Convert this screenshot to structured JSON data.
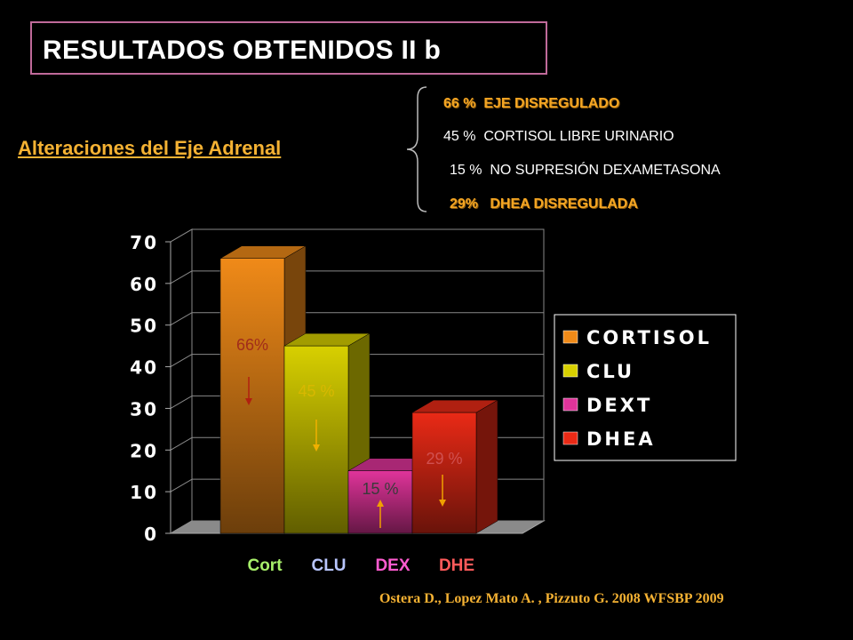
{
  "slide": {
    "title": "RESULTADOS OBTENIDOS II b",
    "subtitle": "Alteraciones del Eje Adrenal",
    "citation": "Ostera D., Lopez Mato A. , Pizzuto G. 2008 WFSBP 2009"
  },
  "stats": [
    {
      "text": "66 %  EJE DISREGULADO",
      "style": "bold"
    },
    {
      "text": "45 %  CORTISOL LIBRE URINARIO",
      "style": "plain"
    },
    {
      "text": "15 %  NO SUPRESIÓN DEXAMETASONA",
      "style": "plain"
    },
    {
      "text": "29%   DHEA DISREGULADA",
      "style": "bold"
    }
  ],
  "chart_data": {
    "type": "bar",
    "categories": [
      "Cort",
      "CLU",
      "DEX",
      "DHE"
    ],
    "category_colors": [
      "#a7ef6a",
      "#b9c6ff",
      "#ff5bd0",
      "#ff5a5a"
    ],
    "series": [
      {
        "name": "CORTISOL",
        "color": "#f08a18",
        "value": 66,
        "label": "66%",
        "arrow": "down"
      },
      {
        "name": "CLU",
        "color": "#d8d000",
        "value": 45,
        "label": "45 %",
        "arrow": "down"
      },
      {
        "name": "DEXT",
        "color": "#e0349a",
        "value": 15,
        "label": "15 %",
        "arrow": "up"
      },
      {
        "name": "DHEA",
        "color": "#ea2a16",
        "value": 29,
        "label": "29 %",
        "arrow": "down"
      }
    ],
    "ylim": [
      0,
      70
    ],
    "yticks": [
      0,
      10,
      20,
      30,
      40,
      50,
      60,
      70
    ],
    "grid": true,
    "legend_position": "right"
  }
}
